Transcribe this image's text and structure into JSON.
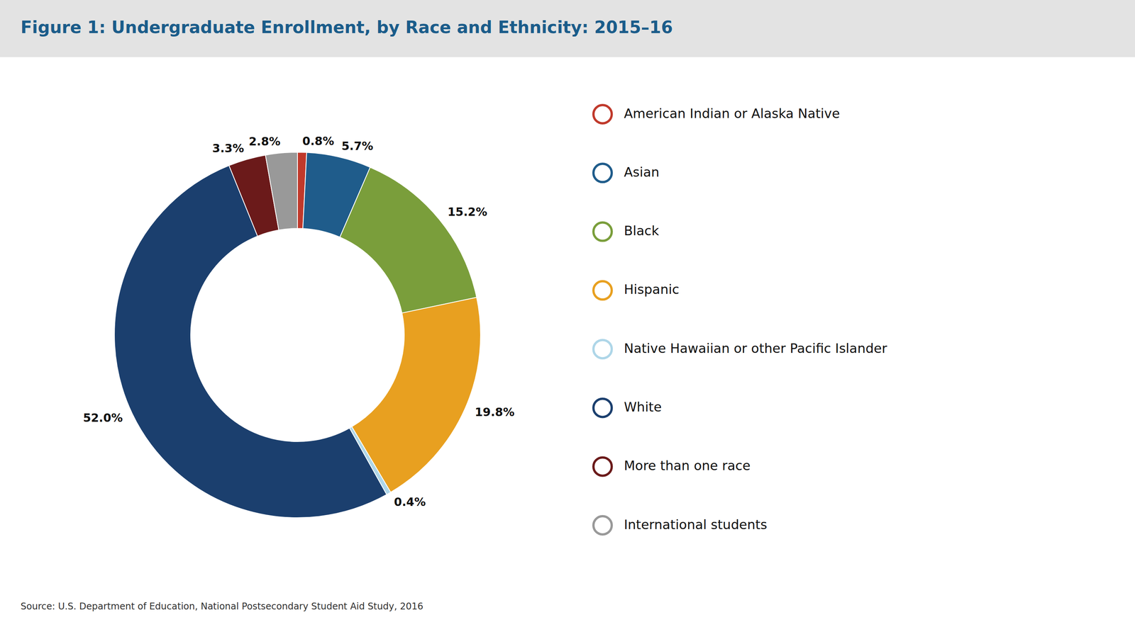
{
  "chart_data": {
    "type": "donut",
    "title": "Figure 1: Undergraduate Enrollment, by Race and Ethnicity: 2015–16",
    "annotations": [
      "Source: U.S. Department of Education, National Postsecondary Student Aid Study, 2016"
    ],
    "categories": [
      "American Indian or Alaska Native",
      "Asian",
      "Black",
      "Hispanic",
      "Native Hawaiian or other Pacific Islander",
      "White",
      "More than one race",
      "International students"
    ],
    "values": [
      0.8,
      5.7,
      15.2,
      19.8,
      0.4,
      52.0,
      3.3,
      2.8
    ],
    "value_labels": [
      "0.8%",
      "5.7%",
      "15.2%",
      "19.8%",
      "0.4%",
      "52.0%",
      "3.3%",
      "2.8%"
    ],
    "colors": [
      "#c0392b",
      "#1f5c8b",
      "#7a9e3b",
      "#e8a020",
      "#aed6e8",
      "#1b3f6e",
      "#6b1a1a",
      "#999999"
    ],
    "data_labels": true,
    "legend": "right"
  }
}
